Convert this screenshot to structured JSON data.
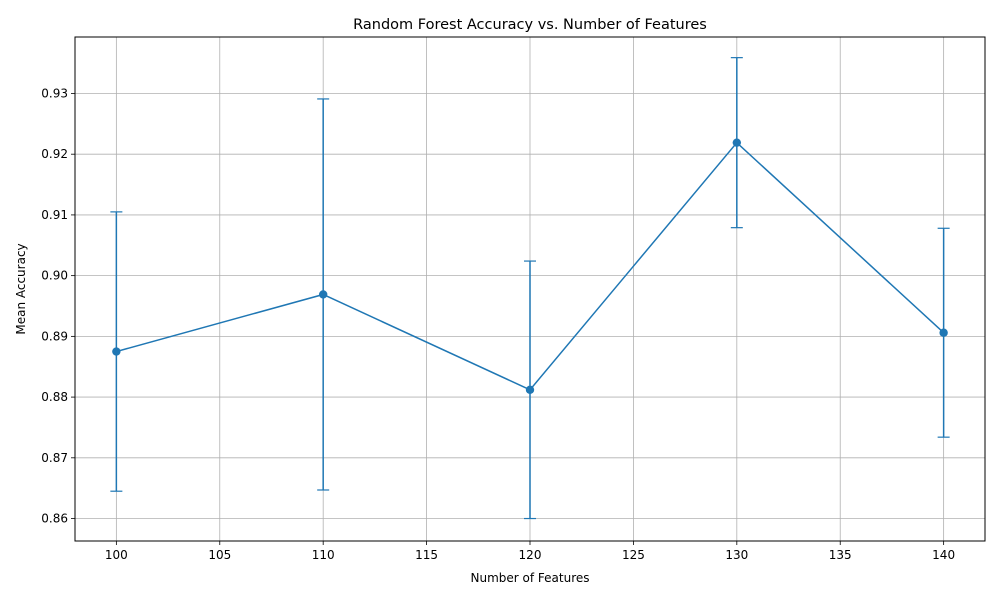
{
  "chart_data": {
    "type": "line",
    "title": "Random Forest Accuracy vs. Number of Features",
    "xlabel": "Number of Features",
    "ylabel": "Mean Accuracy",
    "xlim": [
      98,
      142
    ],
    "ylim": [
      0.8563,
      0.9393
    ],
    "xticks": [
      100,
      105,
      110,
      115,
      120,
      125,
      130,
      135,
      140
    ],
    "yticks": [
      0.86,
      0.87,
      0.88,
      0.89,
      0.9,
      0.91,
      0.92,
      0.93
    ],
    "ytick_labels": [
      "0.86",
      "0.87",
      "0.88",
      "0.89",
      "0.90",
      "0.91",
      "0.92",
      "0.93"
    ],
    "grid": true,
    "series": [
      {
        "color": "#1f77b4",
        "x": [
          100,
          110,
          120,
          130,
          140
        ],
        "y": [
          0.8875,
          0.8969,
          0.8812,
          0.9219,
          0.8906
        ],
        "error": [
          0.023,
          0.0322,
          0.0212,
          0.014,
          0.0172
        ]
      }
    ]
  }
}
